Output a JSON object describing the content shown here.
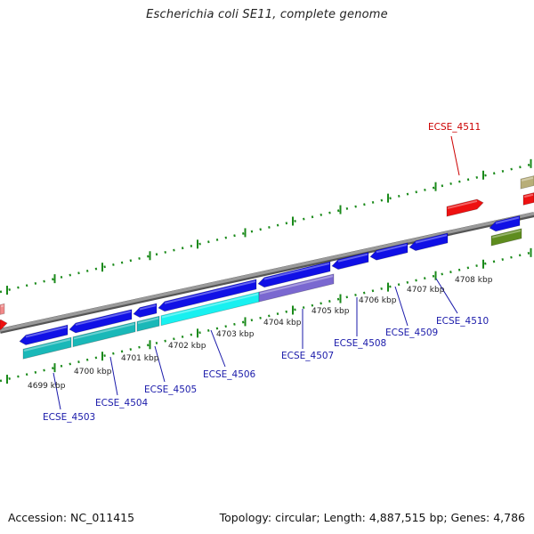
{
  "header": {
    "title": "Escherichia coli SE11, complete genome"
  },
  "footer": {
    "accession": "Accession: NC_011415",
    "summary": "Topology: circular; Length: 4,887,515 bp; Genes: 4,786"
  },
  "colors": {
    "backbone": "#8c8c8c",
    "tick_dots": "#1a8a1a",
    "gene_blue": "#1010e6",
    "gene_cyan_dark": "#1ab8b8",
    "gene_cyan_light": "#18f0f0",
    "gene_purple": "#7a68d0",
    "gene_red": "#ee1111",
    "gene_olive": "#5e8c1e",
    "gene_tan": "#b8ae78",
    "gene_pink": "#f28a8a",
    "label_blue": "#1a1aaa",
    "label_red": "#cc0000"
  },
  "scale_labels": [
    "4699 kbp",
    "4700 kbp",
    "4701 kbp",
    "4702 kbp",
    "4703 kbp",
    "4704 kbp",
    "4705 kbp",
    "4706 kbp",
    "4707 kbp",
    "4708 kbp"
  ],
  "gene_labels": {
    "ecse_4503": "ECSE_4503",
    "ecse_4504": "ECSE_4504",
    "ecse_4505": "ECSE_4505",
    "ecse_4506": "ECSE_4506",
    "ecse_4507": "ECSE_4507",
    "ecse_4508": "ECSE_4508",
    "ecse_4509": "ECSE_4509",
    "ecse_4510": "ECSE_4510",
    "ecse_4511": "ECSE_4511"
  }
}
